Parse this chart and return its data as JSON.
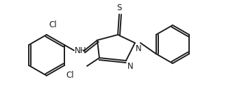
{
  "background": "#ffffff",
  "line_color": "#1a1a1a",
  "line_width": 1.4,
  "font_size": 8.5,
  "fig_width": 3.62,
  "fig_height": 1.63,
  "dpi": 100,
  "xlim": [
    0,
    362
  ],
  "ylim": [
    0,
    163
  ]
}
